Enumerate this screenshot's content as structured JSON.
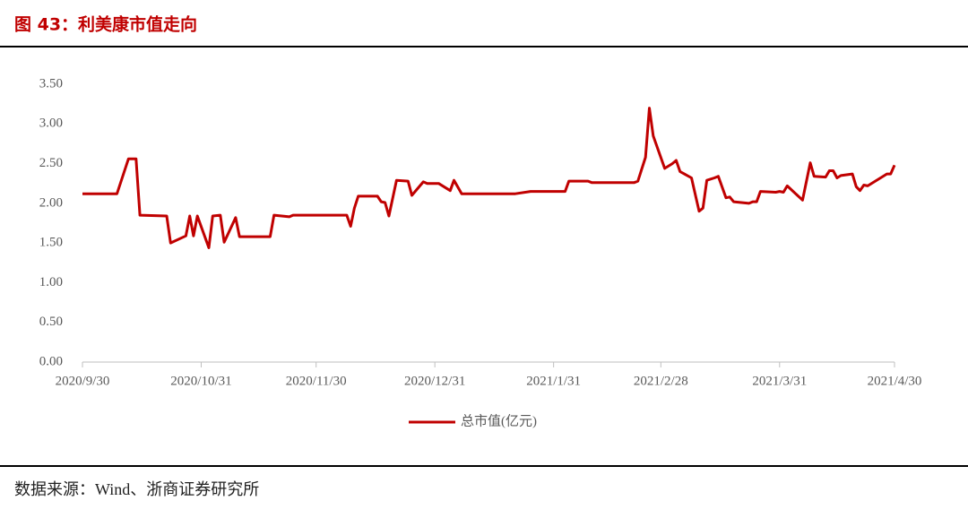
{
  "header": {
    "title": "图 43：利美康市值走向"
  },
  "chart_data": {
    "type": "line",
    "x": [
      "2020/9/30",
      "2020/10/9",
      "2020/10/12",
      "2020/10/14",
      "2020/10/15",
      "2020/10/22",
      "2020/10/23",
      "2020/10/27",
      "2020/10/28",
      "2020/10/29",
      "2020/10/30",
      "2020/11/2",
      "2020/11/3",
      "2020/11/5",
      "2020/11/6",
      "2020/11/9",
      "2020/11/10",
      "2020/11/18",
      "2020/11/19",
      "2020/11/23",
      "2020/11/24",
      "2020/12/8",
      "2020/12/9",
      "2020/12/10",
      "2020/12/11",
      "2020/12/16",
      "2020/12/17",
      "2020/12/18",
      "2020/12/19",
      "2020/12/21",
      "2020/12/24",
      "2020/12/25",
      "2020/12/28",
      "2020/12/29",
      "2021/1/1",
      "2021/1/4",
      "2021/1/5",
      "2021/1/7",
      "2021/1/21",
      "2021/1/25",
      "2021/2/3",
      "2021/2/4",
      "2021/2/9",
      "2021/2/10",
      "2021/2/21",
      "2021/2/22",
      "2021/2/24",
      "2021/2/25",
      "2021/2/26",
      "2021/3/1",
      "2021/3/3",
      "2021/3/4",
      "2021/3/5",
      "2021/3/8",
      "2021/3/10",
      "2021/3/11",
      "2021/3/12",
      "2021/3/14",
      "2021/3/15",
      "2021/3/17",
      "2021/3/18",
      "2021/3/19",
      "2021/3/23",
      "2021/3/24",
      "2021/3/25",
      "2021/3/26",
      "2021/3/30",
      "2021/3/31",
      "2021/4/1",
      "2021/4/2",
      "2021/4/6",
      "2021/4/8",
      "2021/4/9",
      "2021/4/12",
      "2021/4/13",
      "2021/4/14",
      "2021/4/15",
      "2021/4/16",
      "2021/4/19",
      "2021/4/20",
      "2021/4/21",
      "2021/4/22",
      "2021/4/23",
      "2021/4/28",
      "2021/4/29",
      "2021/4/30"
    ],
    "series": [
      {
        "name": "总市值(亿元)",
        "color": "#c00000",
        "values": [
          2.12,
          2.12,
          2.56,
          2.56,
          1.85,
          1.84,
          1.5,
          1.59,
          1.84,
          1.59,
          1.84,
          1.44,
          1.84,
          1.85,
          1.51,
          1.82,
          1.58,
          1.58,
          1.85,
          1.83,
          1.85,
          1.85,
          1.71,
          1.94,
          2.09,
          2.09,
          2.02,
          2.01,
          1.84,
          2.29,
          2.28,
          2.1,
          2.27,
          2.25,
          2.25,
          2.16,
          2.29,
          2.12,
          2.12,
          2.15,
          2.15,
          2.28,
          2.28,
          2.26,
          2.26,
          2.28,
          2.58,
          3.2,
          2.85,
          2.44,
          2.5,
          2.54,
          2.4,
          2.32,
          1.9,
          1.94,
          2.29,
          2.32,
          2.34,
          2.07,
          2.08,
          2.02,
          2.0,
          2.02,
          2.02,
          2.15,
          2.14,
          2.15,
          2.14,
          2.22,
          2.04,
          2.51,
          2.34,
          2.33,
          2.41,
          2.41,
          2.32,
          2.35,
          2.37,
          2.21,
          2.16,
          2.23,
          2.22,
          2.37,
          2.37,
          2.48
        ]
      }
    ],
    "xlim": [
      "2020/9/30",
      "2021/4/30"
    ],
    "xticks": [
      "2020/9/30",
      "2020/10/31",
      "2020/11/30",
      "2020/12/31",
      "2021/1/31",
      "2021/2/28",
      "2021/3/31",
      "2021/4/30"
    ],
    "ylim": [
      0,
      3.5
    ],
    "yticks": [
      {
        "value": 0,
        "label": "0.00"
      },
      {
        "value": 0.5,
        "label": "0.50"
      },
      {
        "value": 1,
        "label": "1.00"
      },
      {
        "value": 1.5,
        "label": "1.50"
      },
      {
        "value": 2,
        "label": "2.00"
      },
      {
        "value": 2.5,
        "label": "2.50"
      },
      {
        "value": 3,
        "label": "3.00"
      },
      {
        "value": 3.5,
        "label": "3.50"
      }
    ],
    "legend": "bottom"
  },
  "footer": {
    "source": "数据来源：Wind、浙商证券研究所"
  }
}
